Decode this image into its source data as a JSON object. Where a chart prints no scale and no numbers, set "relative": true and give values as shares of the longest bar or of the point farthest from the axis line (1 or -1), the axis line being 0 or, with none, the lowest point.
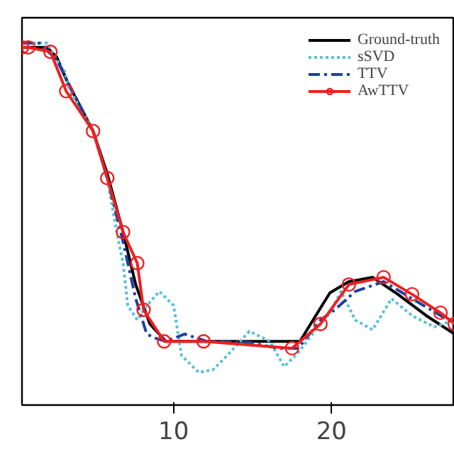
{
  "chart_data": {
    "type": "line",
    "relative": true,
    "xlim": [
      0.4,
      27.8
    ],
    "xticks": [
      10,
      20
    ],
    "tick_labels": "x",
    "legend": "top right",
    "grid": false,
    "series": [
      {
        "name": "Ground-truth",
        "color": "#000000",
        "line_style": "solid",
        "x": [
          0.4,
          2.0,
          2.6,
          3.3,
          4.1,
          4.9,
          5.8,
          6.8,
          7.6,
          8.5,
          9.5,
          18.0,
          19.0,
          19.9,
          21.1,
          22.6,
          24.2,
          26.0,
          27.8
        ],
        "values": [
          0.988,
          0.988,
          0.961,
          0.89,
          0.824,
          0.757,
          0.639,
          0.478,
          0.333,
          0.224,
          0.176,
          0.176,
          0.247,
          0.31,
          0.341,
          0.353,
          0.306,
          0.247,
          0.196
        ]
      },
      {
        "name": "sSVD",
        "color": "#5bc0d8",
        "line_style": "dotted",
        "x": [
          0.4,
          2.0,
          2.6,
          3.1,
          3.3,
          4.9,
          5.8,
          6.4,
          6.8,
          7.1,
          7.7,
          8.3,
          9.1,
          10.0,
          10.5,
          11.6,
          12.5,
          13.4,
          14.8,
          16.1,
          17.0,
          17.9,
          18.8,
          19.4,
          19.9,
          20.6,
          21.5,
          22.6,
          23.8,
          25.1,
          26.5,
          27.8
        ],
        "values": [
          1.0,
          1.0,
          0.953,
          0.922,
          0.882,
          0.757,
          0.627,
          0.478,
          0.392,
          0.275,
          0.235,
          0.275,
          0.314,
          0.275,
          0.137,
          0.09,
          0.098,
          0.137,
          0.204,
          0.176,
          0.106,
          0.145,
          0.196,
          0.235,
          0.255,
          0.314,
          0.235,
          0.208,
          0.294,
          0.247,
          0.216,
          0.235
        ]
      },
      {
        "name": "TTV",
        "color": "#2040a0",
        "line_style": "dashdot",
        "x": [
          0.4,
          1.5,
          2.6,
          4.9,
          5.8,
          6.8,
          7.6,
          8.3,
          8.9,
          9.5,
          10.7,
          12.1,
          14.8,
          16.6,
          17.9,
          19.3,
          20.2,
          21.5,
          23.3,
          25.1,
          27.8
        ],
        "values": [
          1.0,
          1.0,
          0.953,
          0.757,
          0.627,
          0.451,
          0.294,
          0.196,
          0.184,
          0.176,
          0.196,
          0.176,
          0.173,
          0.157,
          0.157,
          0.235,
          0.263,
          0.314,
          0.341,
          0.294,
          0.224
        ]
      },
      {
        "name": "AwTTV",
        "color": "#ee2020",
        "line_style": "solid",
        "marker": "circle",
        "x": [
          0.4,
          0.8,
          2.2,
          3.2,
          4.9,
          5.8,
          6.8,
          7.7,
          8.1,
          9.4,
          11.9,
          17.5,
          19.3,
          21.1,
          23.3,
          25.1,
          26.9,
          27.8
        ],
        "values": [
          0.988,
          0.988,
          0.976,
          0.867,
          0.757,
          0.627,
          0.478,
          0.392,
          0.263,
          0.176,
          0.176,
          0.157,
          0.224,
          0.333,
          0.353,
          0.306,
          0.255,
          0.224
        ]
      }
    ]
  }
}
